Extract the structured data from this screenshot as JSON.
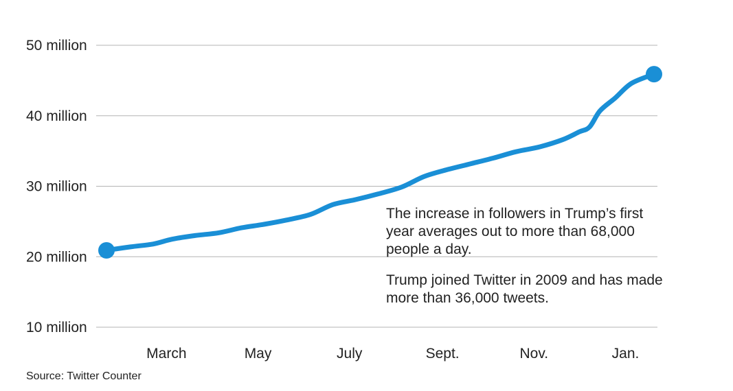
{
  "chart_data": {
    "type": "line",
    "title": "",
    "xlabel": "",
    "ylabel": "",
    "ylim": [
      10,
      50
    ],
    "y_ticks": [
      {
        "value": 50,
        "label": "50 million"
      },
      {
        "value": 40,
        "label": "40 million"
      },
      {
        "value": 30,
        "label": "30 million"
      },
      {
        "value": 20,
        "label": "20 million"
      },
      {
        "value": 10,
        "label": "10 million"
      }
    ],
    "x_ticks": [
      {
        "value": "2017-03-01",
        "label": "March"
      },
      {
        "value": "2017-05-01",
        "label": "May"
      },
      {
        "value": "2017-07-01",
        "label": "July"
      },
      {
        "value": "2017-09-01",
        "label": "Sept."
      },
      {
        "value": "2017-11-01",
        "label": "Nov."
      },
      {
        "value": "2018-01-01",
        "label": "Jan."
      }
    ],
    "xlim": [
      "2017-01-20",
      "2018-01-20"
    ],
    "grid": true,
    "line_color": "#1a8fd6",
    "grid_color": "#b3b3b3",
    "series": [
      {
        "values": [
          {
            "x": "2017-01-20",
            "y": 20.9
          },
          {
            "x": "2017-02-05",
            "y": 21.4
          },
          {
            "x": "2017-02-20",
            "y": 21.8
          },
          {
            "x": "2017-03-05",
            "y": 22.5
          },
          {
            "x": "2017-03-20",
            "y": 23.0
          },
          {
            "x": "2017-04-05",
            "y": 23.4
          },
          {
            "x": "2017-04-20",
            "y": 24.1
          },
          {
            "x": "2017-05-05",
            "y": 24.6
          },
          {
            "x": "2017-05-20",
            "y": 25.2
          },
          {
            "x": "2017-06-05",
            "y": 26.0
          },
          {
            "x": "2017-06-20",
            "y": 27.4
          },
          {
            "x": "2017-07-05",
            "y": 28.1
          },
          {
            "x": "2017-07-20",
            "y": 28.9
          },
          {
            "x": "2017-08-05",
            "y": 29.9
          },
          {
            "x": "2017-08-20",
            "y": 31.4
          },
          {
            "x": "2017-09-05",
            "y": 32.4
          },
          {
            "x": "2017-09-20",
            "y": 33.2
          },
          {
            "x": "2017-10-05",
            "y": 34.0
          },
          {
            "x": "2017-10-20",
            "y": 34.9
          },
          {
            "x": "2017-11-05",
            "y": 35.6
          },
          {
            "x": "2017-11-20",
            "y": 36.6
          },
          {
            "x": "2017-12-01",
            "y": 37.7
          },
          {
            "x": "2017-12-08",
            "y": 38.4
          },
          {
            "x": "2017-12-15",
            "y": 40.7
          },
          {
            "x": "2017-12-25",
            "y": 42.5
          },
          {
            "x": "2018-01-05",
            "y": 44.6
          },
          {
            "x": "2018-01-20",
            "y": 45.9
          }
        ]
      }
    ],
    "annotations": [
      "The increase in followers in Trump’s first year averages out to more than 68,000 people a day.",
      "Trump joined Twitter in 2009 and has made more than 36,000 tweets."
    ]
  },
  "source": "Source: Twitter Counter"
}
